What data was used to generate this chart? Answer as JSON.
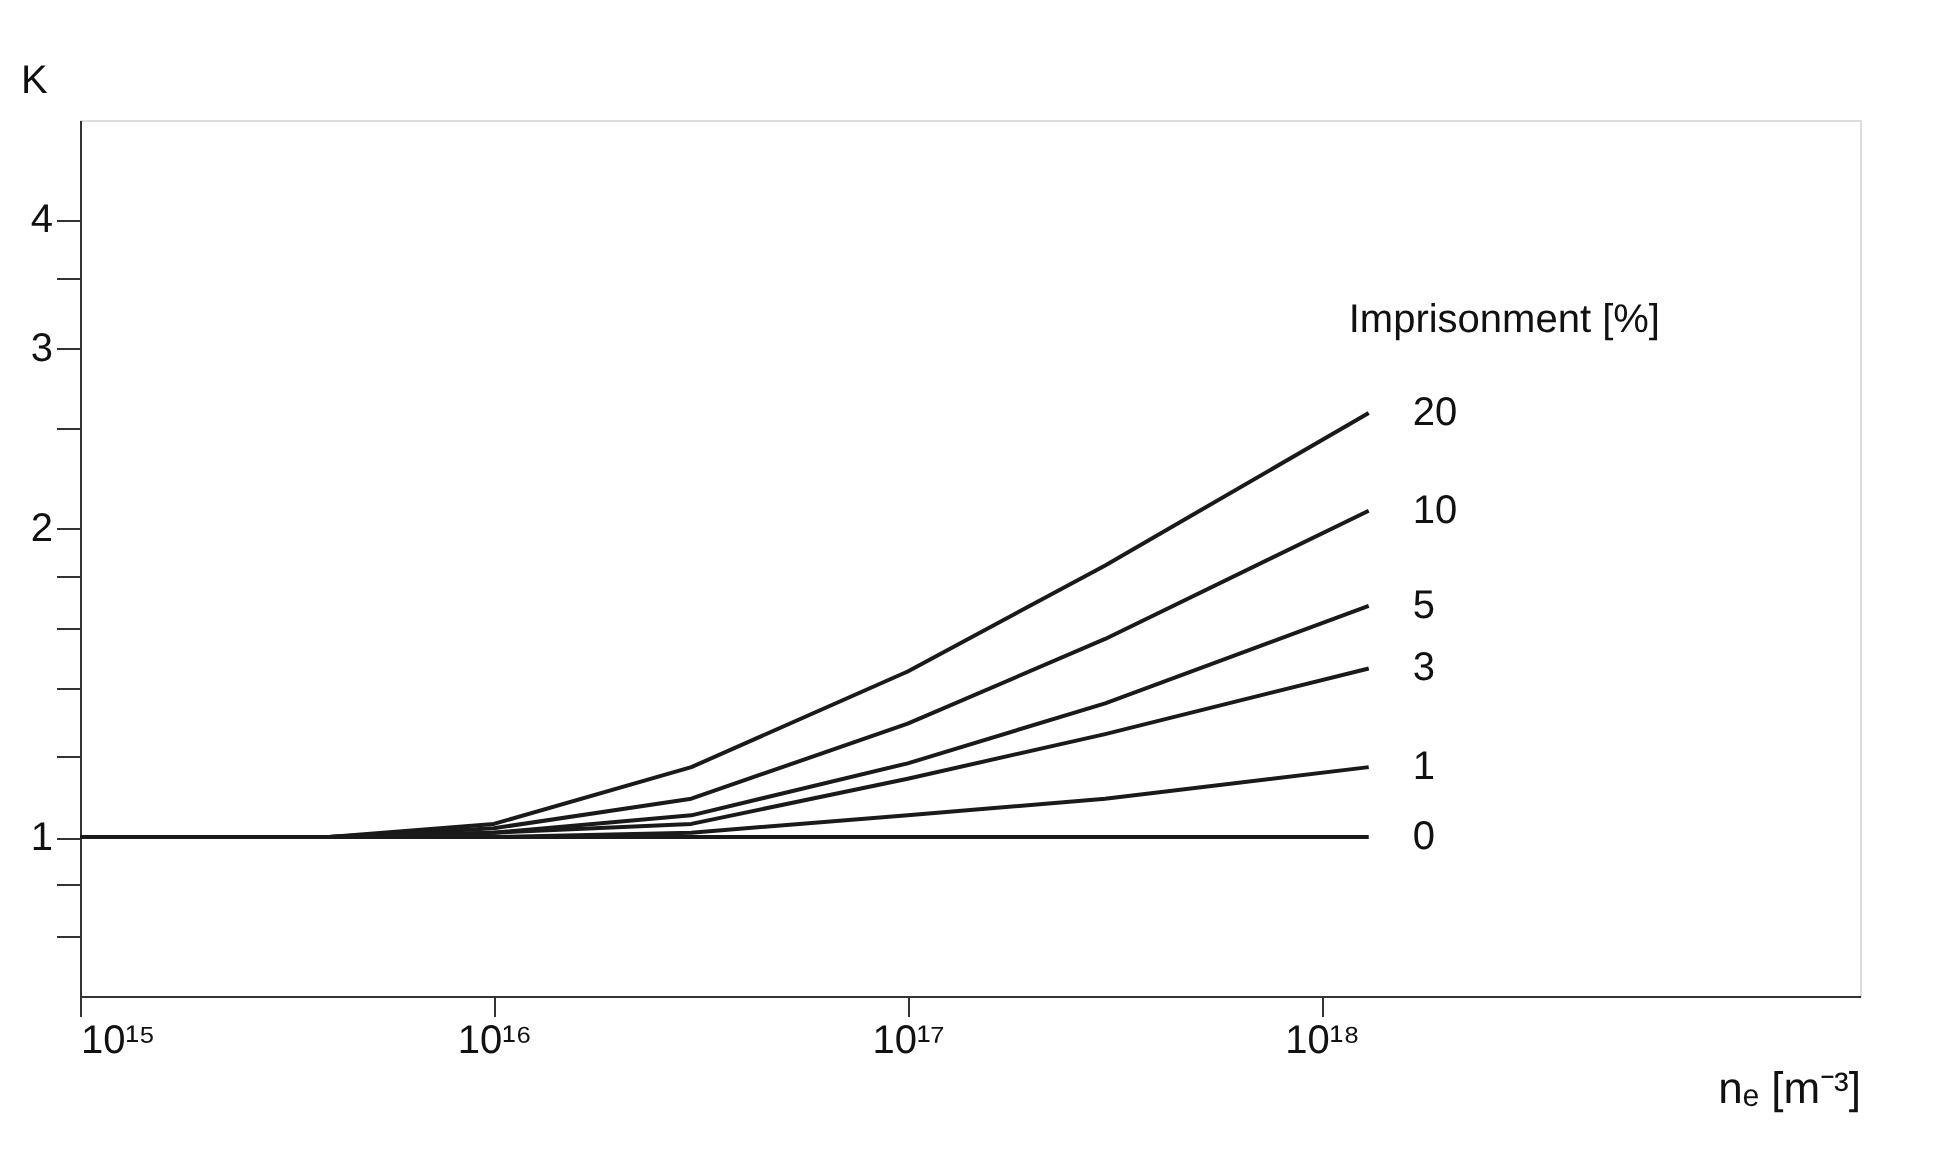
{
  "chart_data": {
    "type": "line",
    "xlabel": "nₑ [m⁻³]",
    "ylabel": "K",
    "legend_title": "Imprisonment [%]",
    "log": "xy",
    "grid": false,
    "legend": false,
    "marker": "none",
    "line_style": "solid",
    "x": [
      1000000000000000.0,
      4000000000000000.0,
      1e+16,
      3e+16,
      1e+17,
      3e+17,
      1.3e+18
    ],
    "xlim": [
      1000000000000000.0,
      2e+19
    ],
    "xticks": [
      {
        "value": 1000000000000000.0,
        "label": "10¹⁵"
      },
      {
        "value": 1e+16,
        "label": "10¹⁶"
      },
      {
        "value": 1e+17,
        "label": "10¹⁷"
      },
      {
        "value": 1e+18,
        "label": "10¹⁸"
      }
    ],
    "ylim": [
      0.7,
      5
    ],
    "yticks": [
      {
        "value": 0.8,
        "label": null
      },
      {
        "value": 0.9,
        "label": null
      },
      1,
      {
        "value": 1.2,
        "label": null
      },
      {
        "value": 1.4,
        "label": null
      },
      {
        "value": 1.6,
        "label": null
      },
      {
        "value": 1.8,
        "label": null
      },
      2,
      {
        "value": 2.5,
        "label": null
      },
      3,
      {
        "value": 3.5,
        "label": null
      },
      4
    ],
    "series": [
      {
        "name": "20",
        "color": "#1a1a1a",
        "values": [
          1,
          1,
          1.03,
          1.17,
          1.45,
          1.84,
          2.59
        ]
      },
      {
        "name": "10",
        "color": "#1a1a1a",
        "values": [
          1,
          1,
          1.02,
          1.09,
          1.29,
          1.56,
          2.08
        ]
      },
      {
        "name": "5",
        "color": "#1a1a1a",
        "values": [
          1,
          1,
          1.01,
          1.05,
          1.18,
          1.35,
          1.68
        ]
      },
      {
        "name": "3",
        "color": "#1a1a1a",
        "values": [
          1,
          1,
          1.01,
          1.03,
          1.14,
          1.26,
          1.46
        ]
      },
      {
        "name": "1",
        "color": "#1a1a1a",
        "values": [
          1,
          1,
          1,
          1.01,
          1.05,
          1.09,
          1.17
        ]
      },
      {
        "name": "0",
        "color": "#1a1a1a",
        "values": [
          1,
          1,
          1,
          1,
          1,
          1,
          1
        ]
      }
    ]
  }
}
